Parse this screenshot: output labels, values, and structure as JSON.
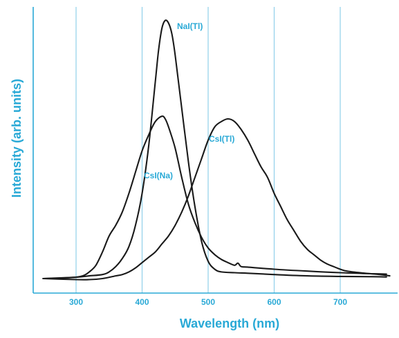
{
  "chart_data": {
    "type": "line",
    "title": "",
    "xlabel": "Wavelength (nm)",
    "ylabel": "Intensity (arb. units)",
    "xlim": [
      240,
      780
    ],
    "ylim": [
      0,
      1.0
    ],
    "xticks": [
      300,
      400,
      500,
      600,
      700
    ],
    "yticks": [],
    "grid": true,
    "legend": "none",
    "colors": {
      "axis": "#29a9d6",
      "grid": "#8fd0ea",
      "curve": "#1a1a1a"
    },
    "series": [
      {
        "name": "NaI(Tl)",
        "x": [
          250,
          300,
          320,
          340,
          350,
          360,
          370,
          380,
          390,
          400,
          410,
          420,
          425,
          430,
          435,
          440,
          445,
          450,
          460,
          470,
          480,
          490,
          500,
          510,
          520,
          540,
          560,
          600,
          650,
          700,
          750,
          770
        ],
        "y": [
          0.0,
          0.005,
          0.01,
          0.015,
          0.025,
          0.045,
          0.075,
          0.12,
          0.2,
          0.32,
          0.5,
          0.74,
          0.86,
          0.94,
          0.97,
          0.96,
          0.92,
          0.84,
          0.64,
          0.44,
          0.27,
          0.14,
          0.065,
          0.035,
          0.025,
          0.022,
          0.02,
          0.015,
          0.01,
          0.008,
          0.007,
          0.006
        ]
      },
      {
        "name": "CsI(Na)",
        "x": [
          250,
          290,
          310,
          320,
          330,
          340,
          350,
          360,
          370,
          380,
          390,
          400,
          410,
          420,
          430,
          435,
          440,
          450,
          460,
          470,
          480,
          490,
          500,
          510,
          520,
          530,
          540,
          545,
          550,
          560,
          600,
          650,
          700,
          750,
          770
        ],
        "y": [
          0.0,
          0.003,
          0.01,
          0.025,
          0.05,
          0.1,
          0.16,
          0.2,
          0.25,
          0.32,
          0.4,
          0.48,
          0.54,
          0.59,
          0.61,
          0.6,
          0.57,
          0.49,
          0.38,
          0.28,
          0.21,
          0.155,
          0.115,
          0.09,
          0.072,
          0.06,
          0.05,
          0.058,
          0.045,
          0.043,
          0.035,
          0.028,
          0.022,
          0.018,
          0.017
        ]
      },
      {
        "name": "CsI(Tl)",
        "x": [
          250,
          300,
          320,
          340,
          360,
          370,
          380,
          390,
          400,
          410,
          420,
          430,
          440,
          450,
          460,
          470,
          480,
          490,
          500,
          510,
          520,
          530,
          540,
          550,
          560,
          570,
          580,
          590,
          600,
          610,
          620,
          630,
          640,
          650,
          660,
          670,
          680,
          690,
          700,
          710,
          730,
          760,
          775
        ],
        "y": [
          0.0,
          -0.004,
          -0.004,
          0.0,
          0.01,
          0.015,
          0.025,
          0.04,
          0.06,
          0.08,
          0.1,
          0.13,
          0.16,
          0.2,
          0.25,
          0.31,
          0.38,
          0.45,
          0.52,
          0.57,
          0.59,
          0.6,
          0.59,
          0.56,
          0.52,
          0.47,
          0.42,
          0.38,
          0.32,
          0.27,
          0.22,
          0.18,
          0.14,
          0.11,
          0.09,
          0.07,
          0.055,
          0.045,
          0.035,
          0.028,
          0.022,
          0.015,
          0.01
        ]
      }
    ]
  }
}
